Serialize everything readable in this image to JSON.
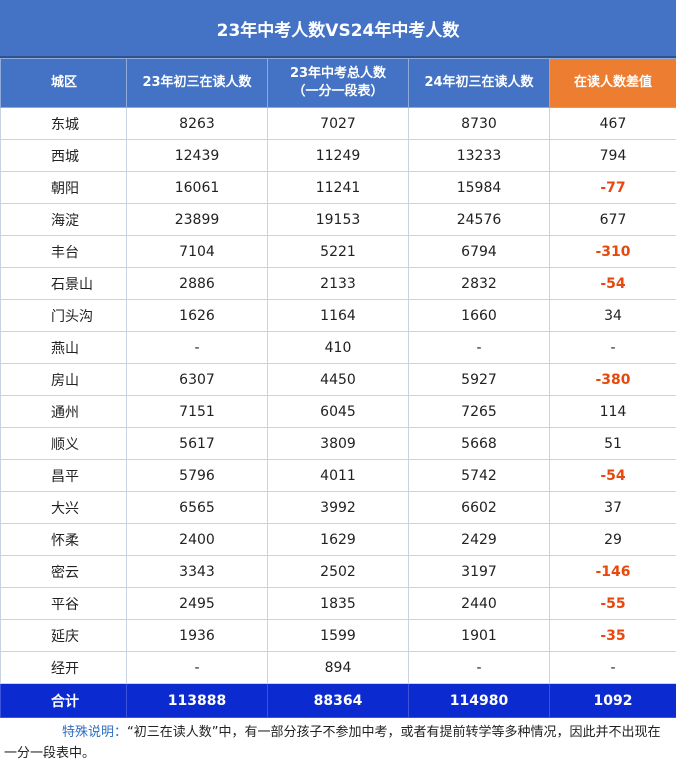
{
  "title": "23年中考人数VS24年中考人数",
  "headers": [
    "城区",
    "23年初三在读人数",
    "23年中考总人数",
    "（一分一段表）",
    "24年初三在读人数",
    "在读人数差值"
  ],
  "rows": [
    {
      "district": "东城",
      "read23": "8263",
      "exam23": "7027",
      "read24": "8730",
      "diff": "467",
      "neg": false
    },
    {
      "district": "西城",
      "read23": "12439",
      "exam23": "11249",
      "read24": "13233",
      "diff": "794",
      "neg": false
    },
    {
      "district": "朝阳",
      "read23": "16061",
      "exam23": "11241",
      "read24": "15984",
      "diff": "-77",
      "neg": true
    },
    {
      "district": "海淀",
      "read23": "23899",
      "exam23": "19153",
      "read24": "24576",
      "diff": "677",
      "neg": false
    },
    {
      "district": "丰台",
      "read23": "7104",
      "exam23": "5221",
      "read24": "6794",
      "diff": "-310",
      "neg": true
    },
    {
      "district": "石景山",
      "read23": "2886",
      "exam23": "2133",
      "read24": "2832",
      "diff": "-54",
      "neg": true
    },
    {
      "district": "门头沟",
      "read23": "1626",
      "exam23": "1164",
      "read24": "1660",
      "diff": "34",
      "neg": false
    },
    {
      "district": "燕山",
      "read23": "-",
      "exam23": "410",
      "read24": "-",
      "diff": "-",
      "neg": false
    },
    {
      "district": "房山",
      "read23": "6307",
      "exam23": "4450",
      "read24": "5927",
      "diff": "-380",
      "neg": true
    },
    {
      "district": "通州",
      "read23": "7151",
      "exam23": "6045",
      "read24": "7265",
      "diff": "114",
      "neg": false
    },
    {
      "district": "顺义",
      "read23": "5617",
      "exam23": "3809",
      "read24": "5668",
      "diff": "51",
      "neg": false
    },
    {
      "district": "昌平",
      "read23": "5796",
      "exam23": "4011",
      "read24": "5742",
      "diff": "-54",
      "neg": true
    },
    {
      "district": "大兴",
      "read23": "6565",
      "exam23": "3992",
      "read24": "6602",
      "diff": "37",
      "neg": false
    },
    {
      "district": "怀柔",
      "read23": "2400",
      "exam23": "1629",
      "read24": "2429",
      "diff": "29",
      "neg": false
    },
    {
      "district": "密云",
      "read23": "3343",
      "exam23": "2502",
      "read24": "3197",
      "diff": "-146",
      "neg": true
    },
    {
      "district": "平谷",
      "read23": "2495",
      "exam23": "1835",
      "read24": "2440",
      "diff": "-55",
      "neg": true
    },
    {
      "district": "延庆",
      "read23": "1936",
      "exam23": "1599",
      "read24": "1901",
      "diff": "-35",
      "neg": true
    },
    {
      "district": "经开",
      "read23": "-",
      "exam23": "894",
      "read24": "-",
      "diff": "-",
      "neg": false
    }
  ],
  "total": {
    "label": "合计",
    "read23": "113888",
    "exam23": "88364",
    "read24": "114980",
    "diff": "1092"
  },
  "note": {
    "label": "特殊说明：",
    "text": "“初三在读人数”中，有一部分孩子不参加中考，或者有提前转学等多种情况，因此并不出现在一分一段表中。"
  },
  "colors": {
    "header": "#4472c4",
    "diff_header": "#ed7d31",
    "total_row": "#0b2bd1",
    "negative": "#e8480c"
  }
}
